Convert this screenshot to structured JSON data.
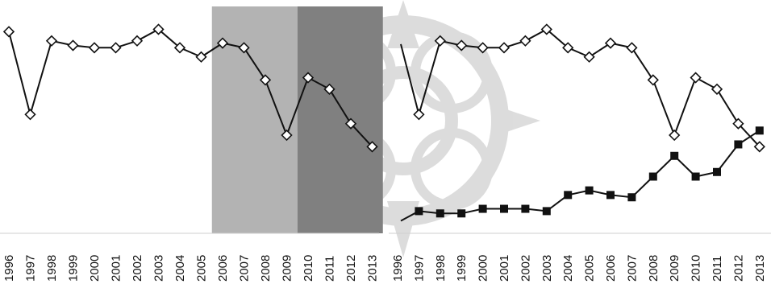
{
  "chart_data": [
    {
      "type": "line",
      "x": [
        "1996",
        "1997",
        "1998",
        "1999",
        "2000",
        "2001",
        "2002",
        "2003",
        "2004",
        "2005",
        "2006",
        "2007",
        "2008",
        "2009",
        "2010",
        "2011",
        "2012",
        "2013"
      ],
      "series": [
        {
          "marker": "diamond",
          "fill": "#ffffff",
          "values": [
            88,
            52,
            84,
            82,
            81,
            81,
            84,
            89,
            81,
            77,
            83,
            81,
            67,
            43,
            68,
            63,
            48,
            38
          ]
        }
      ],
      "shaded_regions": [
        {
          "from": "2005.5",
          "to": "2009.5",
          "color": "#b3b3b3"
        },
        {
          "from": "2009.5",
          "to": "2013.5",
          "color": "#808080"
        }
      ],
      "ylim": [
        0,
        100
      ],
      "grid": false,
      "title": "",
      "xlabel": "",
      "ylabel": ""
    },
    {
      "type": "line",
      "x": [
        "1996",
        "1997",
        "1998",
        "1999",
        "2000",
        "2001",
        "2002",
        "2003",
        "2004",
        "2005",
        "2006",
        "2007",
        "2008",
        "2009",
        "2010",
        "2011",
        "2012",
        "2013"
      ],
      "series": [
        {
          "marker": "diamond",
          "fill": "#ffffff",
          "values": [
            88,
            52,
            84,
            82,
            81,
            81,
            84,
            89,
            81,
            77,
            83,
            81,
            67,
            43,
            68,
            63,
            48,
            38
          ]
        },
        {
          "marker": "square",
          "fill": "#111111",
          "values": [
            5,
            10,
            9,
            9,
            11,
            11,
            11,
            10,
            17,
            19,
            17,
            16,
            25,
            34,
            25,
            27,
            39,
            45
          ]
        }
      ],
      "ylim": [
        0,
        100
      ],
      "grid": false,
      "title": "",
      "xlabel": "",
      "ylabel": ""
    }
  ]
}
